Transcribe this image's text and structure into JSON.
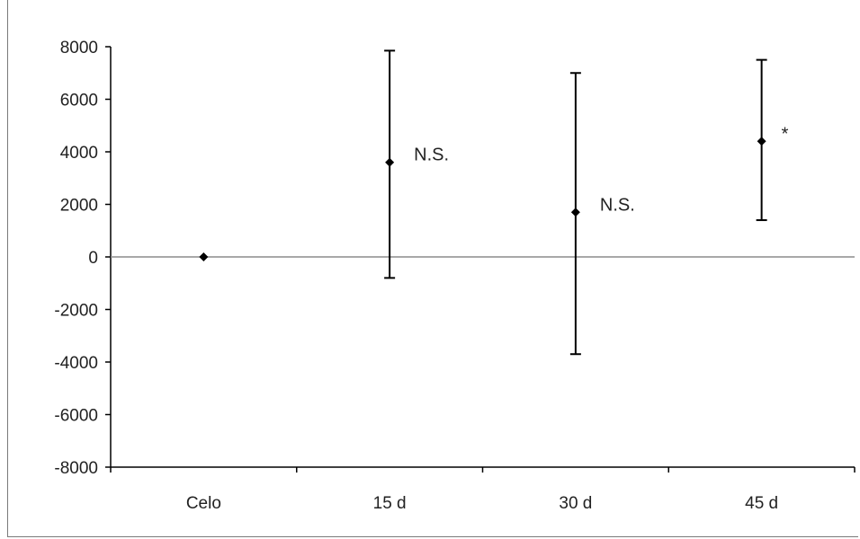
{
  "chart_data": {
    "type": "scatter",
    "title": "",
    "xlabel": "",
    "ylabel": "",
    "categories": [
      "Celo",
      "15 d",
      "30 d",
      "45 d"
    ],
    "ylim": [
      -8000,
      8000
    ],
    "yticks": [
      8000,
      6000,
      4000,
      2000,
      0,
      -2000,
      -4000,
      -6000,
      -8000
    ],
    "grid": false,
    "legend": "none",
    "series": [
      {
        "values": [
          0,
          3600,
          1700,
          4400
        ],
        "error_low": [
          0,
          -800,
          -3700,
          1400
        ],
        "error_high": [
          0,
          7850,
          7000,
          7500
        ],
        "annotations": [
          "",
          "N.S.",
          "N.S.",
          "*"
        ]
      }
    ],
    "colors": {
      "marker": "#000000",
      "zero_line": "#8c8c8c",
      "axis": "#000000"
    }
  }
}
